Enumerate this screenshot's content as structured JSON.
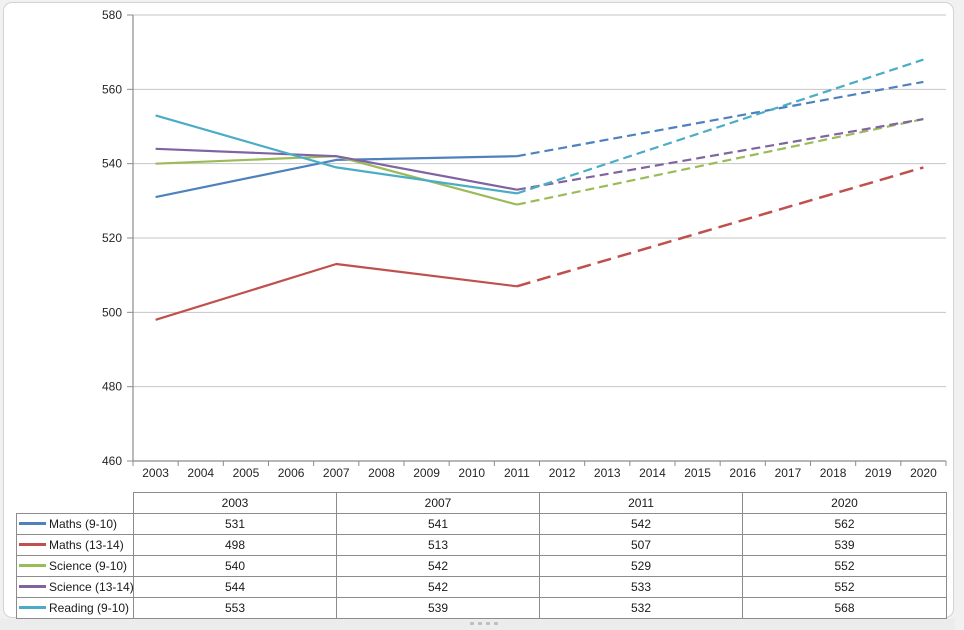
{
  "chart_data": {
    "type": "line",
    "title": "",
    "xlabel": "",
    "ylabel": "",
    "x_tick_labels": [
      "2003",
      "2004",
      "2005",
      "2006",
      "2007",
      "2008",
      "2009",
      "2010",
      "2011",
      "2012",
      "2013",
      "2014",
      "2015",
      "2016",
      "2017",
      "2018",
      "2019",
      "2020"
    ],
    "y_tick_labels": [
      "580",
      "560",
      "540",
      "520",
      "500",
      "480",
      "460"
    ],
    "ylim": [
      460,
      580
    ],
    "y_step": 20,
    "grid": true,
    "legend_position": "data-table-left-column",
    "data_years": [
      2003,
      2007,
      2011,
      2020
    ],
    "solid_until_year": 2011,
    "dashed_after_year": 2011,
    "series": [
      {
        "name": "Maths (9-10)",
        "color": "#4F81BD",
        "values": [
          531,
          541,
          542,
          562
        ]
      },
      {
        "name": "Maths (13-14)",
        "color": "#C0504D",
        "values": [
          498,
          513,
          507,
          539
        ]
      },
      {
        "name": "Science (9-10)",
        "color": "#9BBB59",
        "values": [
          540,
          542,
          529,
          552
        ]
      },
      {
        "name": "Science (13-14)",
        "color": "#8064A2",
        "values": [
          544,
          542,
          533,
          552
        ]
      },
      {
        "name": "Reading (9-10)",
        "color": "#4BACC6",
        "values": [
          553,
          539,
          532,
          568
        ]
      }
    ]
  },
  "table": {
    "columns": [
      "2003",
      "2007",
      "2011",
      "2020"
    ]
  },
  "colors": {
    "axis": "#8c8c8c",
    "gridline": "#c4c4c4",
    "table_border": "#8c8c8c",
    "text": "#262626",
    "frame_border": "#d3d3d3"
  }
}
